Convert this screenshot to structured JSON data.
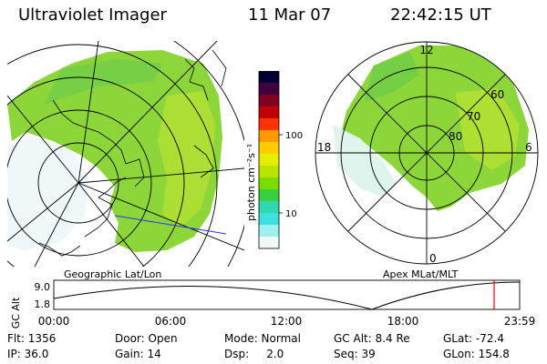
{
  "header": {
    "title": "Ultraviolet Imager",
    "date": "11 Mar 07",
    "time": "22:42:15 UT"
  },
  "colorbar": {
    "unit_label": "photon cm⁻²s⁻¹",
    "ticks": [
      "100",
      "10"
    ],
    "colors": [
      "#000033",
      "#400040",
      "#800020",
      "#c00000",
      "#ff3300",
      "#ff9900",
      "#ffcc00",
      "#e6ee00",
      "#b8e400",
      "#7cdc00",
      "#38d040",
      "#30d8b0",
      "#40e0e0",
      "#a0f0f0",
      "#f0f8f8"
    ]
  },
  "geo_panel": {
    "label": "Geographic Lat/Lon"
  },
  "apex_panel": {
    "label": "Apex  MLat/MLT",
    "mlt_labels": {
      "top": "12",
      "left": "18",
      "right": "6",
      "bottom": "0"
    },
    "lat_labels": [
      "60",
      "70",
      "80"
    ]
  },
  "altitude_plot": {
    "ylabel": "GC Alt",
    "yticks": [
      "9.0",
      "1.8"
    ],
    "xticks": [
      "00:00",
      "06:00",
      "12:00",
      "18:00",
      "23:59"
    ],
    "marker_color": "#ff0000"
  },
  "info": {
    "flt": "Flt: 1356",
    "ip": "IP: 36.0",
    "door": "Door: Open",
    "gain": "Gain: 14",
    "mode": "Mode: Normal",
    "dsp": "Dsp:     2.0",
    "gcalt": "GC Alt: 8.4 Re",
    "seq": "Seq: 39",
    "glat": "GLat: -72.4",
    "glon": "GLon: 154.8"
  }
}
